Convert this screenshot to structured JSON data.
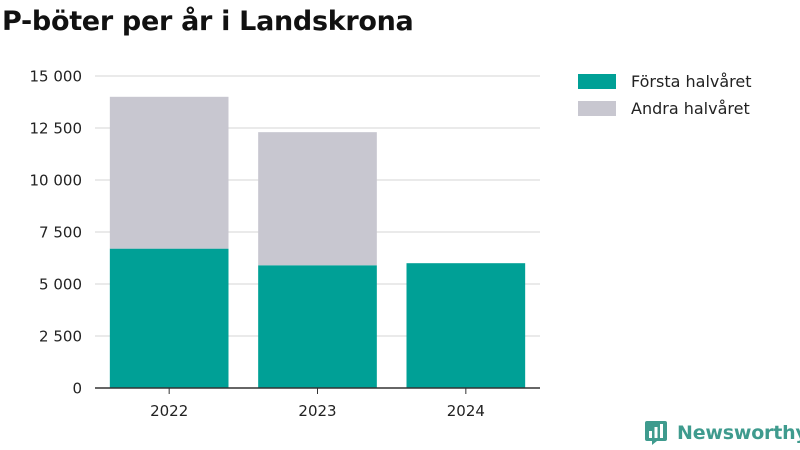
{
  "colors": {
    "first_half": "#00a096",
    "second_half": "#c8c7d0",
    "grid": "#dddddd",
    "axis": "#333333",
    "brand": "#3f9b8e"
  },
  "brand": {
    "name": "Newsworthy",
    "icon": "newsworthy-logo-icon"
  },
  "chart_data": {
    "type": "bar",
    "stacked": true,
    "title": "P-böter per år i Landskrona",
    "xlabel": "",
    "ylabel": "",
    "categories": [
      "2022",
      "2023",
      "2024"
    ],
    "series": [
      {
        "name": "Första halvåret",
        "values": [
          6700,
          5900,
          6000
        ]
      },
      {
        "name": "Andra halvåret",
        "values": [
          7300,
          6400,
          0
        ]
      }
    ],
    "ylim": [
      0,
      15000
    ],
    "yticks": [
      0,
      2500,
      5000,
      7500,
      10000,
      12500,
      15000
    ],
    "ytick_labels": [
      "0",
      "2 500",
      "5 000",
      "7 500",
      "10 000",
      "12 500",
      "15 000"
    ],
    "grid": true,
    "legend_position": "top-right"
  }
}
